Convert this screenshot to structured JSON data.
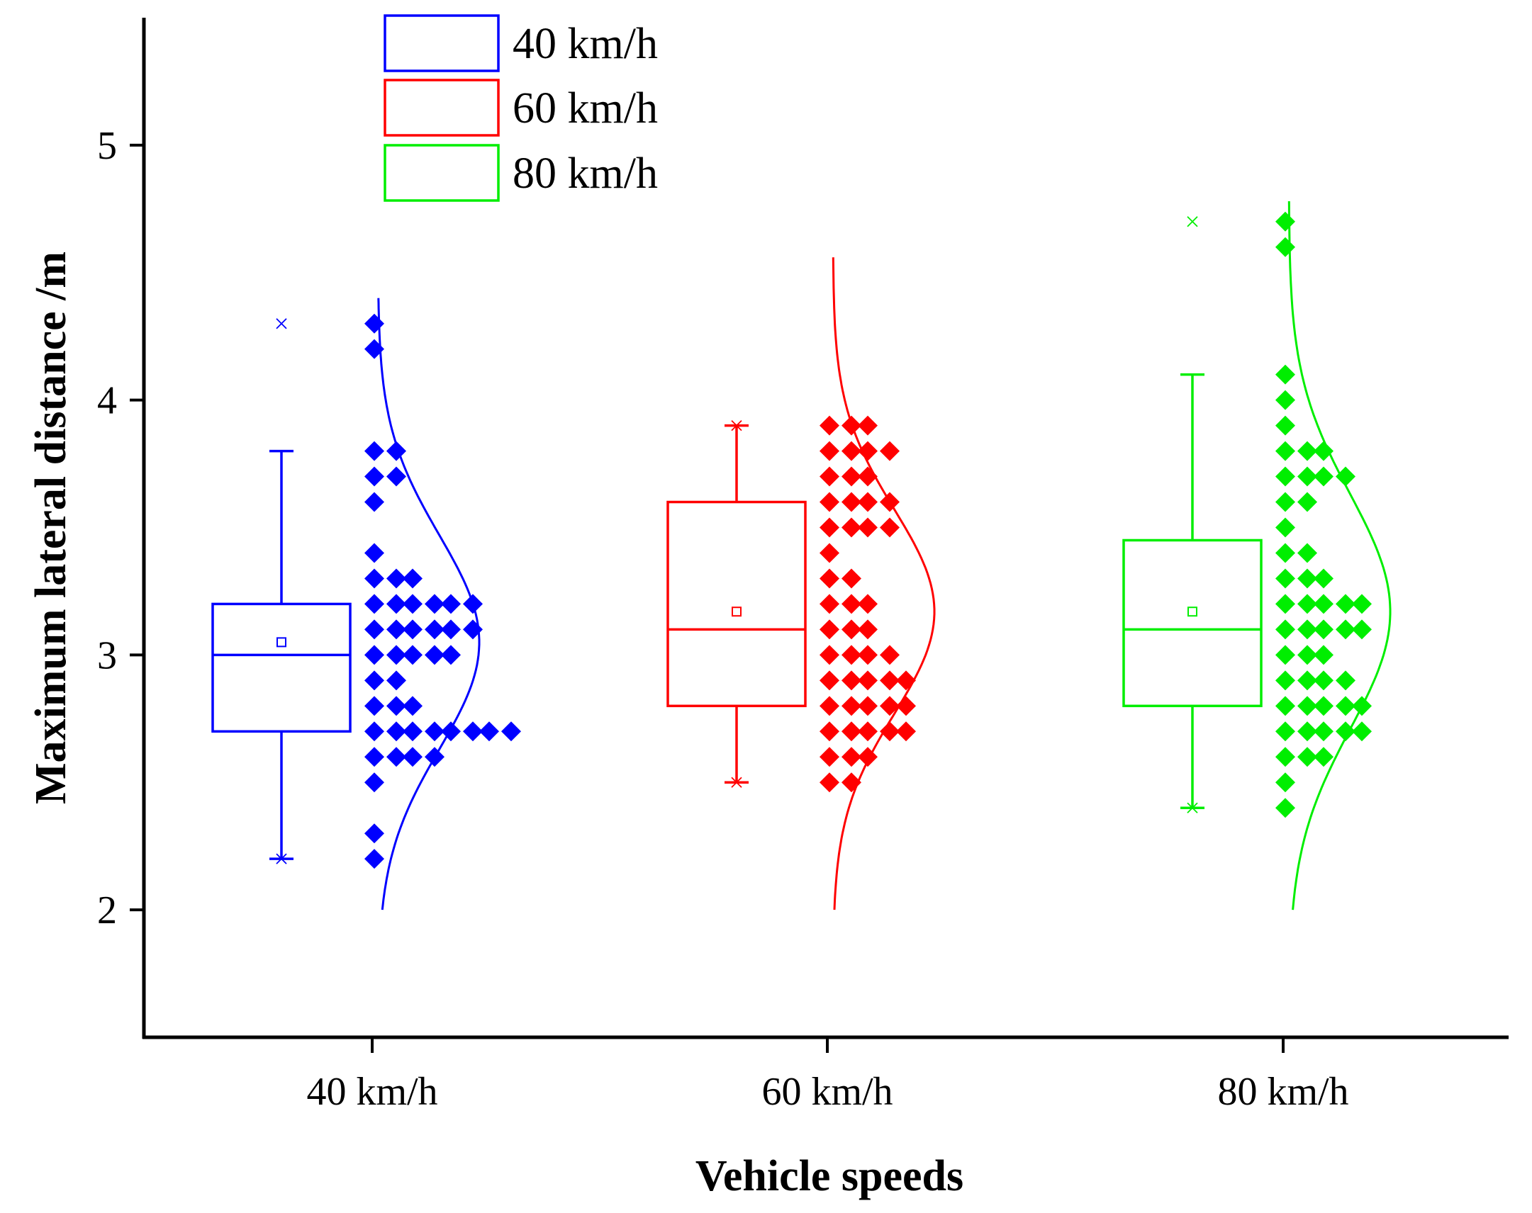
{
  "chart_data": {
    "type": "box-with-scatter-and-distribution",
    "xlabel": "Vehicle speeds",
    "ylabel": "Maximum lateral distance /m",
    "ylim": [
      1.5,
      5.5
    ],
    "yticks": [
      2,
      3,
      4,
      5
    ],
    "categories": [
      "40 km/h",
      "60 km/h",
      "80 km/h"
    ],
    "legend": {
      "position": "top-left",
      "entries": [
        "40 km/h",
        "60 km/h",
        "80 km/h"
      ]
    },
    "series": [
      {
        "name": "40 km/h",
        "color": "#0000ff",
        "box": {
          "whisker_low": 2.2,
          "q1": 2.7,
          "median": 3.0,
          "q3": 3.2,
          "whisker_high": 3.8,
          "mean": 3.05,
          "min": 2.2,
          "max": 4.3
        },
        "normal": {
          "mean": 3.05,
          "sd": 0.42,
          "ymin": 2.0,
          "ymax": 4.4
        },
        "points": [
          4.3,
          4.2,
          3.8,
          3.8,
          3.7,
          3.7,
          3.6,
          3.4,
          3.3,
          3.3,
          3.3,
          3.2,
          3.2,
          3.2,
          3.2,
          3.2,
          3.2,
          3.1,
          3.1,
          3.1,
          3.1,
          3.1,
          3.1,
          3.0,
          3.0,
          3.0,
          3.0,
          3.0,
          2.9,
          2.9,
          2.8,
          2.8,
          2.8,
          2.7,
          2.7,
          2.7,
          2.7,
          2.7,
          2.7,
          2.7,
          2.7,
          2.6,
          2.6,
          2.6,
          2.6,
          2.5,
          2.3,
          2.2
        ]
      },
      {
        "name": "60 km/h",
        "color": "#ff0000",
        "box": {
          "whisker_low": 2.5,
          "q1": 2.8,
          "median": 3.1,
          "q3": 3.6,
          "whisker_high": 3.9,
          "mean": 3.17,
          "min": 2.5,
          "max": 3.9
        },
        "normal": {
          "mean": 3.17,
          "sd": 0.4,
          "ymin": 2.0,
          "ymax": 4.57
        },
        "points": [
          3.9,
          3.9,
          3.9,
          3.8,
          3.8,
          3.8,
          3.8,
          3.7,
          3.7,
          3.7,
          3.6,
          3.6,
          3.6,
          3.6,
          3.5,
          3.5,
          3.5,
          3.5,
          3.4,
          3.3,
          3.3,
          3.2,
          3.2,
          3.2,
          3.1,
          3.1,
          3.1,
          3.0,
          3.0,
          3.0,
          3.0,
          2.9,
          2.9,
          2.9,
          2.9,
          2.9,
          2.8,
          2.8,
          2.8,
          2.8,
          2.8,
          2.7,
          2.7,
          2.7,
          2.7,
          2.7,
          2.6,
          2.6,
          2.6,
          2.5,
          2.5
        ]
      },
      {
        "name": "80 km/h",
        "color": "#00ee00",
        "box": {
          "whisker_low": 2.4,
          "q1": 2.8,
          "median": 3.1,
          "q3": 3.45,
          "whisker_high": 4.1,
          "mean": 3.17,
          "min": 2.4,
          "max": 4.7
        },
        "normal": {
          "mean": 3.17,
          "sd": 0.46,
          "ymin": 2.0,
          "ymax": 4.78
        },
        "points": [
          4.7,
          4.6,
          4.1,
          4.0,
          3.9,
          3.8,
          3.8,
          3.8,
          3.7,
          3.7,
          3.7,
          3.7,
          3.6,
          3.6,
          3.5,
          3.4,
          3.4,
          3.3,
          3.3,
          3.3,
          3.2,
          3.2,
          3.2,
          3.2,
          3.2,
          3.1,
          3.1,
          3.1,
          3.1,
          3.1,
          3.0,
          3.0,
          3.0,
          2.9,
          2.9,
          2.9,
          2.9,
          2.8,
          2.8,
          2.8,
          2.8,
          2.8,
          2.7,
          2.7,
          2.7,
          2.7,
          2.7,
          2.6,
          2.6,
          2.6,
          2.5,
          2.4
        ]
      }
    ]
  }
}
